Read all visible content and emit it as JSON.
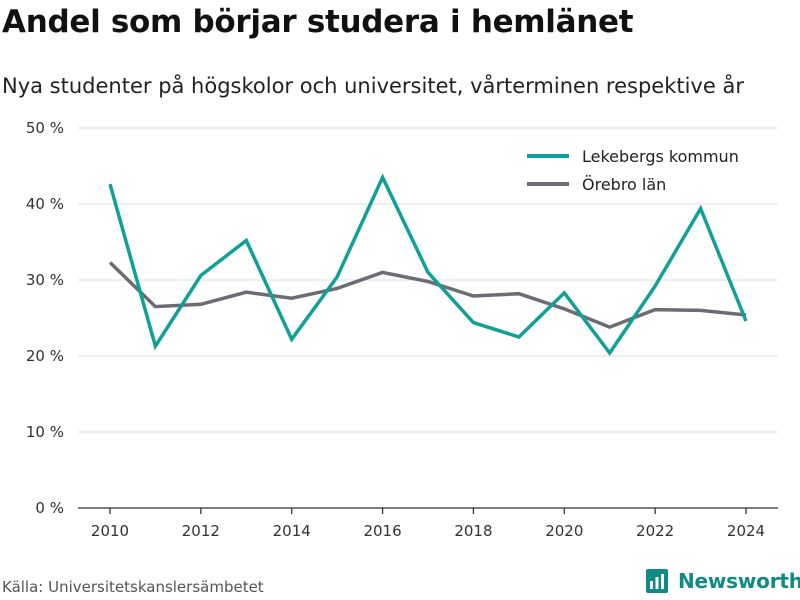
{
  "header": {
    "title": "Andel som börjar studera i hemlänet",
    "subtitle": "Nya studenter på högskolor och universitet, vårterminen respektive år"
  },
  "footer": {
    "source": "Källa: Universitetskanslersämbetet",
    "brand": "Newsworthy",
    "brand_icon": "newsworthy-logo-icon"
  },
  "colors": {
    "lekeberg": "#0fa197",
    "orebro": "#6e6b73",
    "grid": "#dcdcdc",
    "axis": "#333333",
    "brand": "#0f8b86"
  },
  "chart_data": {
    "type": "line",
    "title": "Andel som börjar studera i hemlänet",
    "subtitle": "Nya studenter på högskolor och universitet, vårterminen respektive år",
    "xlabel": "",
    "ylabel": "",
    "x": [
      2010,
      2011,
      2012,
      2013,
      2014,
      2015,
      2016,
      2017,
      2018,
      2019,
      2020,
      2021,
      2022,
      2023,
      2024
    ],
    "xticks": [
      2010,
      2012,
      2014,
      2016,
      2018,
      2020,
      2022,
      2024
    ],
    "xtick_labels": [
      "2010",
      "2012",
      "2014",
      "2016",
      "2018",
      "2020",
      "2022",
      "2024"
    ],
    "yticks": [
      0,
      10,
      20,
      30,
      40,
      50
    ],
    "ytick_labels": [
      "0 %",
      "10 %",
      "20 %",
      "30 %",
      "40 %",
      "50 %"
    ],
    "ylim": [
      0,
      50
    ],
    "grid": true,
    "legend_position": "top-right",
    "series": [
      {
        "name": "Lekebergs kommun",
        "values": [
          42.6,
          21.3,
          30.6,
          35.2,
          22.2,
          30.4,
          43.5,
          31.0,
          24.4,
          22.5,
          28.3,
          20.4,
          29.2,
          39.4,
          24.6
        ]
      },
      {
        "name": "Örebro län",
        "values": [
          32.3,
          26.5,
          26.8,
          28.4,
          27.6,
          28.9,
          31.0,
          29.8,
          27.9,
          28.2,
          26.2,
          23.8,
          26.1,
          26.0,
          25.4
        ]
      }
    ]
  }
}
